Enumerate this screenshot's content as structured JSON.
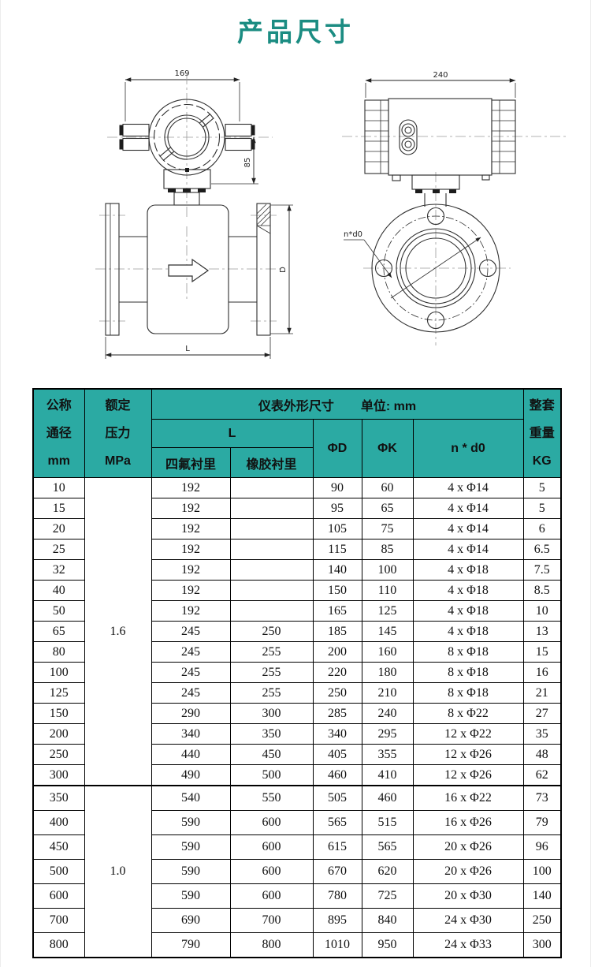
{
  "page": {
    "title": "产品尺寸"
  },
  "colors": {
    "accent_teal": "#2baaa3",
    "title_teal": "#1b8c82",
    "grid": "#000000"
  },
  "drawings": {
    "left": {
      "top_width": "169",
      "side_height": "85",
      "length_label": "L",
      "diameter_label": "D"
    },
    "right": {
      "top_width": "240",
      "bolt_note": "n*d0"
    }
  },
  "table": {
    "header": {
      "nominal": [
        "公称",
        "通径",
        "mm"
      ],
      "pressure": [
        "额定",
        "压力",
        "MPa"
      ],
      "outline_title": "仪表外形尺寸",
      "unit_label": "单位: mm",
      "l_label": "L",
      "ptfe": "四氟衬里",
      "rubber": "橡胶衬里",
      "phi_d": "ΦD",
      "phi_k": "ΦK",
      "n_d0": "n * d0",
      "weight": [
        "整套",
        "重量",
        "KG"
      ]
    },
    "sections": [
      {
        "pressure": "1.6",
        "rows": [
          [
            "10",
            "192",
            "",
            "90",
            "60",
            "4 x Φ14",
            "5"
          ],
          [
            "15",
            "192",
            "",
            "95",
            "65",
            "4 x Φ14",
            "5"
          ],
          [
            "20",
            "192",
            "",
            "105",
            "75",
            "4 x Φ14",
            "6"
          ],
          [
            "25",
            "192",
            "",
            "115",
            "85",
            "4 x Φ14",
            "6.5"
          ],
          [
            "32",
            "192",
            "",
            "140",
            "100",
            "4 x Φ18",
            "7.5"
          ],
          [
            "40",
            "192",
            "",
            "150",
            "110",
            "4 x Φ18",
            "8.5"
          ],
          [
            "50",
            "192",
            "",
            "165",
            "125",
            "4 x Φ18",
            "10"
          ],
          [
            "65",
            "245",
            "250",
            "185",
            "145",
            "4 x Φ18",
            "13"
          ],
          [
            "80",
            "245",
            "255",
            "200",
            "160",
            "8 x Φ18",
            "15"
          ],
          [
            "100",
            "245",
            "255",
            "220",
            "180",
            "8 x Φ18",
            "16"
          ],
          [
            "125",
            "245",
            "255",
            "250",
            "210",
            "8 x Φ18",
            "21"
          ],
          [
            "150",
            "290",
            "300",
            "285",
            "240",
            "8 x Φ22",
            "27"
          ],
          [
            "200",
            "340",
            "350",
            "340",
            "295",
            "12 x Φ22",
            "35"
          ],
          [
            "250",
            "440",
            "450",
            "405",
            "355",
            "12 x Φ26",
            "48"
          ],
          [
            "300",
            "490",
            "500",
            "460",
            "410",
            "12 x Φ26",
            "62"
          ]
        ]
      },
      {
        "pressure": "1.0",
        "rows": [
          [
            "350",
            "540",
            "550",
            "505",
            "460",
            "16 x Φ22",
            "73"
          ],
          [
            "400",
            "590",
            "600",
            "565",
            "515",
            "16 x Φ26",
            "79"
          ],
          [
            "450",
            "590",
            "600",
            "615",
            "565",
            "20 x Φ26",
            "96"
          ],
          [
            "500",
            "590",
            "600",
            "670",
            "620",
            "20 x Φ26",
            "100"
          ],
          [
            "600",
            "590",
            "600",
            "780",
            "725",
            "20 x Φ30",
            "140"
          ],
          [
            "700",
            "690",
            "700",
            "895",
            "840",
            "24 x Φ30",
            "250"
          ],
          [
            "800",
            "790",
            "800",
            "1010",
            "950",
            "24 x Φ33",
            "300"
          ]
        ]
      }
    ]
  }
}
